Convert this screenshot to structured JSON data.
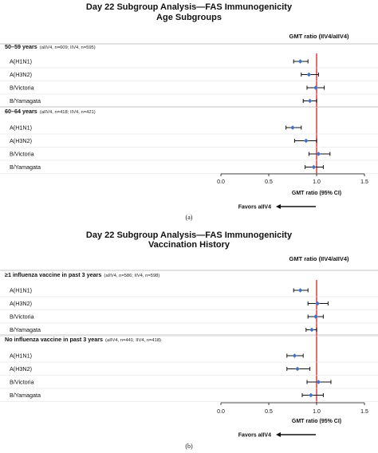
{
  "chart_data": [
    {
      "type": "scatter",
      "title": "Day 22 Subgroup Analysis—FAS Immunogenicity",
      "subtitle": "Age Subgroups",
      "column_header": "GMT ratio (IIV4/aIIV4)",
      "xlabel": "GMT ratio (95% CI)",
      "xlim": [
        0.0,
        1.5
      ],
      "xticks": [
        "0.0",
        "0.5",
        "1.0",
        "1.5"
      ],
      "reference_line": 1.0,
      "favors_label": "Favors aIIV4",
      "caption": "(a)",
      "groups": [
        {
          "name": "50–59 years",
          "note": "(aIIV4, n=609; IIV4, n=595)",
          "rows": [
            {
              "label": "A(H1N1)",
              "estimate": 0.83,
              "ci": [
                0.76,
                0.91
              ]
            },
            {
              "label": "A(H3N2)",
              "estimate": 0.92,
              "ci": [
                0.84,
                1.02
              ]
            },
            {
              "label": "B/Victoria",
              "estimate": 0.99,
              "ci": [
                0.9,
                1.08
              ]
            },
            {
              "label": "B/Yamagata",
              "estimate": 0.93,
              "ci": [
                0.86,
                1.0
              ]
            }
          ]
        },
        {
          "name": "60–64 years",
          "note": "(aIIV4, n=418; IIV4, n=421)",
          "rows": [
            {
              "label": "A(H1N1)",
              "estimate": 0.75,
              "ci": [
                0.68,
                0.84
              ]
            },
            {
              "label": "A(H3N2)",
              "estimate": 0.89,
              "ci": [
                0.77,
                1.0
              ]
            },
            {
              "label": "B/Victoria",
              "estimate": 1.02,
              "ci": [
                0.92,
                1.14
              ]
            },
            {
              "label": "B/Yamagata",
              "estimate": 0.97,
              "ci": [
                0.88,
                1.07
              ]
            }
          ]
        }
      ]
    },
    {
      "type": "scatter",
      "title": "Day 22 Subgroup Analysis—FAS Immunogenicity",
      "subtitle": "Vaccination History",
      "column_header": "GMT ratio (IIV4/aIIV4)",
      "xlabel": "GMT ratio (95% CI)",
      "xlim": [
        0.0,
        1.5
      ],
      "xticks": [
        "0.0",
        "0.5",
        "1.0",
        "1.5"
      ],
      "reference_line": 1.0,
      "favors_label": "Favors aIIV4",
      "caption": "(b)",
      "groups": [
        {
          "name": "≥1 influenza vaccine in past 3 years",
          "note": "(aIIV4, n=586; IIV4, n=598)",
          "rows": [
            {
              "label": "A(H1N1)",
              "estimate": 0.83,
              "ci": [
                0.76,
                0.91
              ]
            },
            {
              "label": "A(H3N2)",
              "estimate": 1.01,
              "ci": [
                0.91,
                1.12
              ]
            },
            {
              "label": "B/Victoria",
              "estimate": 0.99,
              "ci": [
                0.91,
                1.07
              ]
            },
            {
              "label": "B/Yamagata",
              "estimate": 0.95,
              "ci": [
                0.89,
                1.0
              ]
            }
          ]
        },
        {
          "name": "No influenza vaccine in past 3 years",
          "note": "(aIIV4, n=441; IIV4, n=418)",
          "rows": [
            {
              "label": "A(H1N1)",
              "estimate": 0.77,
              "ci": [
                0.69,
                0.86
              ]
            },
            {
              "label": "A(H3N2)",
              "estimate": 0.8,
              "ci": [
                0.69,
                0.93
              ]
            },
            {
              "label": "B/Victoria",
              "estimate": 1.02,
              "ci": [
                0.9,
                1.15
              ]
            },
            {
              "label": "B/Yamagata",
              "estimate": 0.94,
              "ci": [
                0.85,
                1.07
              ]
            }
          ]
        }
      ]
    }
  ],
  "colors": {
    "marker": "#4472c4",
    "reference_line": "#e8474a",
    "divider": "#b0b0b0",
    "text": "#111111"
  }
}
